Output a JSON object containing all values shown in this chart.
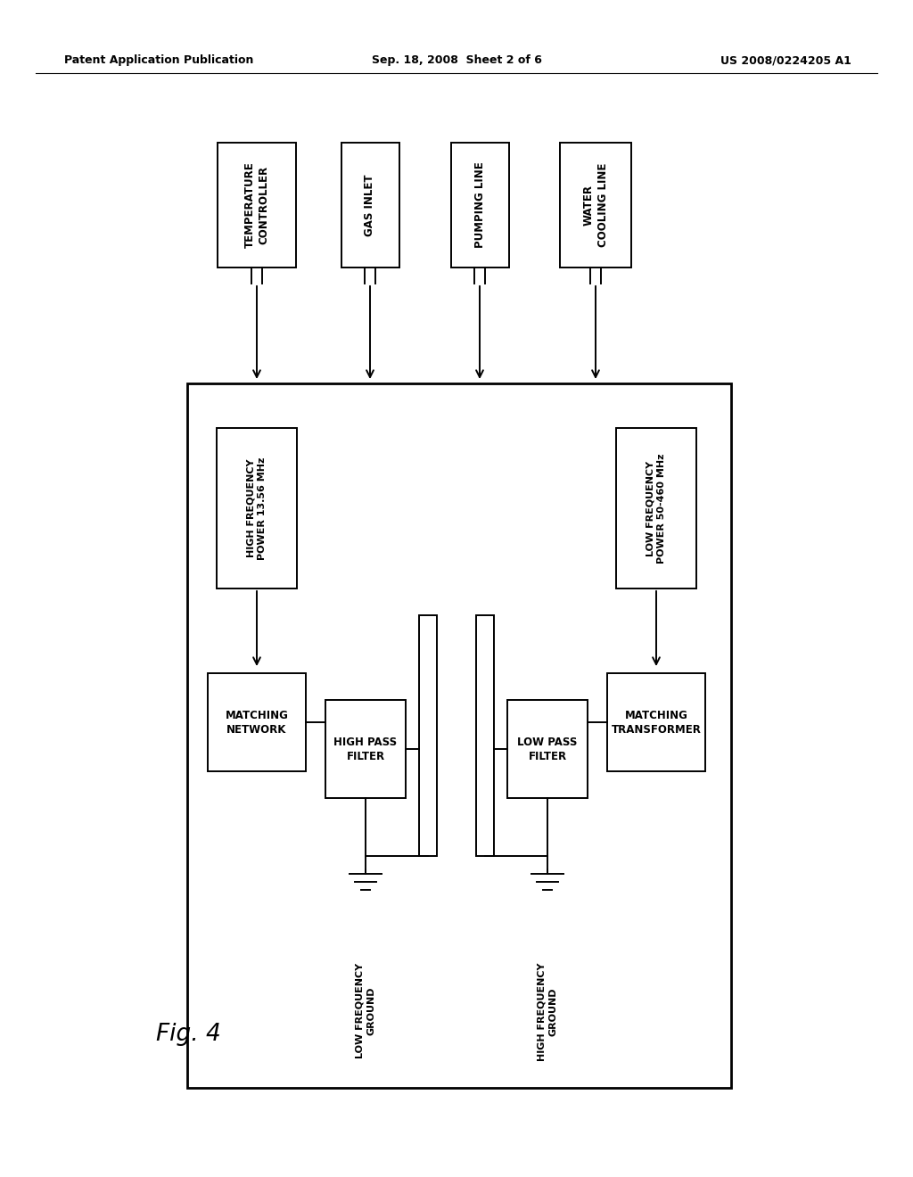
{
  "bg_color": "#ffffff",
  "header_left": "Patent Application Publication",
  "header_center": "Sep. 18, 2008  Sheet 2 of 6",
  "header_right": "US 2008/0224205 A1",
  "fig_label": "Fig. 4"
}
